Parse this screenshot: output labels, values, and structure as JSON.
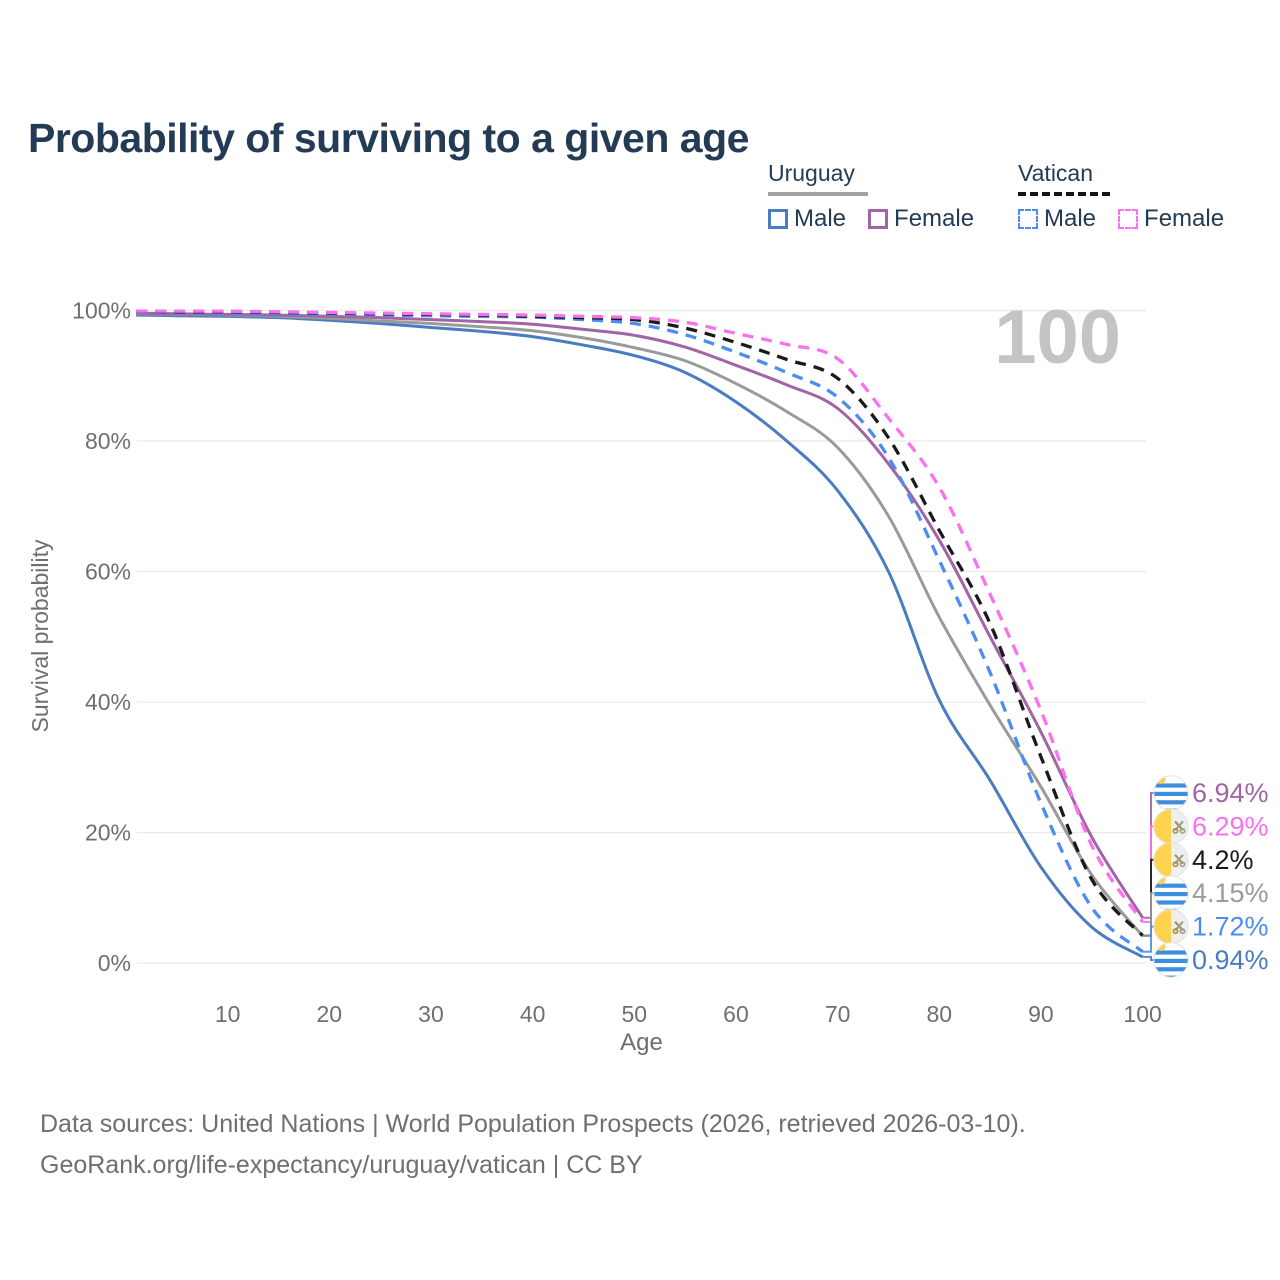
{
  "title": "Probability of surviving to a given age",
  "watermark": "100",
  "legend": {
    "groups": [
      {
        "label": "Uruguay",
        "line_style": "solid",
        "underline_color": "#a3a3a3",
        "items": [
          {
            "label": "Male",
            "color": "#4a7cc2",
            "style": "solid"
          },
          {
            "label": "Female",
            "color": "#a164a4",
            "style": "solid"
          }
        ]
      },
      {
        "label": "Vatican",
        "line_style": "dashed",
        "underline_color": "#161616",
        "items": [
          {
            "label": "Male",
            "color": "#4b8df2",
            "style": "dashed"
          },
          {
            "label": "Female",
            "color": "#fa70ee",
            "style": "dashed"
          }
        ]
      }
    ]
  },
  "axes": {
    "y_title": "Survival probability",
    "x_title": "Age",
    "y_ticks": [
      "0%",
      "20%",
      "40%",
      "60%",
      "80%",
      "100%"
    ],
    "x_ticks": [
      "10",
      "20",
      "30",
      "40",
      "50",
      "60",
      "70",
      "80",
      "90",
      "100"
    ]
  },
  "footer": {
    "line1": "Data sources: United Nations | World Population Prospects (2026, retrieved 2026-03-10).",
    "line2": "GeoRank.org/life-expectancy/uruguay/vatican | CC BY"
  },
  "colors": {
    "title_text": "#243b55",
    "axis_text": "#6f6f6f",
    "gridline": "#e9e9e9",
    "watermark": "#c4c4c4",
    "uruguay_flag_blue": "#3f8ede",
    "flag_sun_yellow": "#ffd04a",
    "vatican_yellow": "#ffd34d"
  },
  "chart_data": {
    "type": "line",
    "title": "Probability of surviving to a given age",
    "xlabel": "Age",
    "ylabel": "Survival probability",
    "xlim": [
      1,
      100
    ],
    "ylim": [
      0,
      100
    ],
    "grid": "horizontal",
    "x": [
      1,
      5,
      10,
      15,
      20,
      25,
      30,
      35,
      40,
      45,
      50,
      55,
      60,
      65,
      70,
      75,
      80,
      85,
      90,
      95,
      100
    ],
    "series": [
      {
        "name": "Uruguay Male",
        "color": "#4a7cc2",
        "dash": "solid",
        "values": [
          99.3,
          99.2,
          99.1,
          98.9,
          98.5,
          98.0,
          97.4,
          96.8,
          96.0,
          94.7,
          93.1,
          90.5,
          86.0,
          80.0,
          72.4,
          60.0,
          40.3,
          28.0,
          14.7,
          5.5,
          0.94
        ]
      },
      {
        "name": "Uruguay Total",
        "color": "#9a9a9a",
        "dash": "solid",
        "values": [
          99.5,
          99.4,
          99.3,
          99.1,
          98.8,
          98.4,
          98.0,
          97.5,
          96.9,
          95.8,
          94.3,
          92.3,
          88.8,
          84.5,
          79.0,
          68.5,
          53.0,
          39.5,
          27.0,
          13.5,
          4.15
        ]
      },
      {
        "name": "Uruguay Female",
        "color": "#a164a4",
        "dash": "solid",
        "values": [
          99.6,
          99.5,
          99.4,
          99.3,
          99.1,
          98.9,
          98.6,
          98.3,
          97.9,
          97.1,
          96.2,
          94.4,
          91.6,
          88.6,
          85.0,
          76.5,
          64.8,
          50.0,
          35.4,
          19.3,
          6.94
        ]
      },
      {
        "name": "Vatican Male",
        "color": "#4b8df2",
        "dash": "dashed",
        "values": [
          99.8,
          99.7,
          99.6,
          99.5,
          99.4,
          99.3,
          99.2,
          99.1,
          99.0,
          98.6,
          98.0,
          96.3,
          93.6,
          90.5,
          86.7,
          77.5,
          61.7,
          44.5,
          24.5,
          8.5,
          1.72
        ]
      },
      {
        "name": "Vatican Total",
        "color": "#1a1a1a",
        "dash": "dashed",
        "values": [
          99.9,
          99.8,
          99.8,
          99.7,
          99.6,
          99.5,
          99.4,
          99.3,
          99.1,
          98.9,
          98.6,
          97.3,
          95.1,
          92.5,
          89.6,
          80.5,
          66.3,
          52.0,
          31.6,
          12.8,
          4.2
        ]
      },
      {
        "name": "Vatican Female",
        "color": "#fa70ee",
        "dash": "dashed",
        "values": [
          99.9,
          99.9,
          99.9,
          99.8,
          99.7,
          99.6,
          99.5,
          99.4,
          99.3,
          99.1,
          98.9,
          98.2,
          96.5,
          94.8,
          92.6,
          83.5,
          72.9,
          56.5,
          38.7,
          18.0,
          6.29
        ]
      }
    ],
    "end_labels": [
      {
        "label": "6.94%",
        "series": "Uruguay Female",
        "flag": "uruguay"
      },
      {
        "label": "6.29%",
        "series": "Vatican Female",
        "flag": "vatican"
      },
      {
        "label": "4.2%",
        "series": "Vatican Total",
        "flag": "vatican"
      },
      {
        "label": "4.15%",
        "series": "Uruguay Total",
        "flag": "uruguay"
      },
      {
        "label": "1.72%",
        "series": "Vatican Male",
        "flag": "vatican"
      },
      {
        "label": "0.94%",
        "series": "Uruguay Male",
        "flag": "uruguay"
      }
    ]
  }
}
